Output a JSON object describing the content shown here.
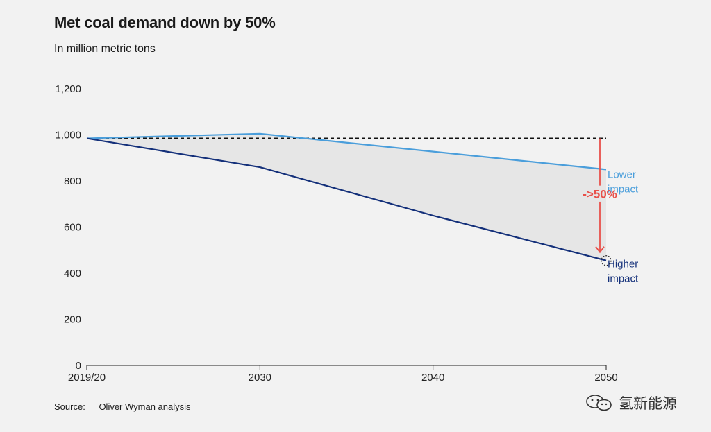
{
  "header": {
    "title": "Met coal demand down by 50%",
    "subtitle": "In million metric tons"
  },
  "chart_data": {
    "type": "line",
    "title": "Met coal demand down by 50%",
    "subtitle": "In million metric tons",
    "xlabel": "",
    "ylabel": "",
    "x_labels": [
      "2019/20",
      "2030",
      "2040",
      "2050"
    ],
    "x_values": [
      2020,
      2030,
      2040,
      2050
    ],
    "y_ticks": [
      0,
      200,
      400,
      600,
      800,
      1000,
      1200
    ],
    "y_tick_labels": [
      "0",
      "200",
      "400",
      "600",
      "800",
      "1,000",
      "1,200"
    ],
    "ylim": [
      0,
      1200
    ],
    "series": [
      {
        "name": "Lower impact",
        "label_lines": [
          "Lower",
          "impact"
        ],
        "color": "#4a9edb",
        "x": [
          2020,
          2030,
          2050
        ],
        "values": [
          985,
          1005,
          850
        ]
      },
      {
        "name": "Higher impact",
        "label_lines": [
          "Higher",
          "impact"
        ],
        "color": "#14307a",
        "x": [
          2020,
          2030,
          2040,
          2050
        ],
        "values": [
          985,
          860,
          650,
          455
        ]
      }
    ],
    "baseline": {
      "value": 985,
      "style": "dashed",
      "color": "#111111"
    },
    "shaded_area_between_series": true,
    "annotation": {
      "text": "->50%",
      "color": "#e8504a",
      "x": 2050,
      "from": 985,
      "to": 455
    },
    "grid": false,
    "legend": "inline-right"
  },
  "footer": {
    "source_label": "Source:",
    "source_text": "Oliver Wyman analysis"
  },
  "watermark": {
    "text": "氢新能源",
    "icon": "wechat-icon"
  }
}
